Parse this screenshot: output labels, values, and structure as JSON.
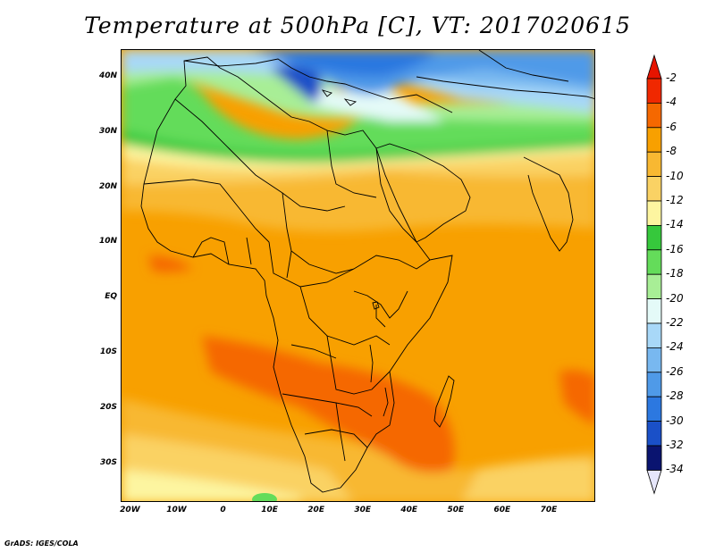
{
  "title": "Temperature at 500hPa [C], VT: 2017020615",
  "credit": "GrADS: IGES/COLA",
  "map": {
    "lon_range": [
      -22,
      80
    ],
    "lat_range": [
      -37,
      45
    ],
    "lat_labels": [
      {
        "lat": 40,
        "label": "40N"
      },
      {
        "lat": 30,
        "label": "30N"
      },
      {
        "lat": 20,
        "label": "20N"
      },
      {
        "lat": 10,
        "label": "10N"
      },
      {
        "lat": 0,
        "label": "EQ"
      },
      {
        "lat": -10,
        "label": "10S"
      },
      {
        "lat": -20,
        "label": "20S"
      },
      {
        "lat": -30,
        "label": "30S"
      }
    ],
    "lon_labels": [
      {
        "lon": -20,
        "label": "20W"
      },
      {
        "lon": -10,
        "label": "10W"
      },
      {
        "lon": 0,
        "label": "0"
      },
      {
        "lon": 10,
        "label": "10E"
      },
      {
        "lon": 20,
        "label": "20E"
      },
      {
        "lon": 30,
        "label": "30E"
      },
      {
        "lon": 40,
        "label": "40E"
      },
      {
        "lon": 50,
        "label": "50E"
      },
      {
        "lon": 60,
        "label": "60E"
      },
      {
        "lon": 70,
        "label": "70E"
      }
    ]
  },
  "colorbar": {
    "levels": [
      {
        "label": "-2",
        "color": "#f02800"
      },
      {
        "label": "-4",
        "color": "#f56800"
      },
      {
        "label": "-6",
        "color": "#f8a000"
      },
      {
        "label": "-8",
        "color": "#f8b832"
      },
      {
        "label": "-10",
        "color": "#fad264"
      },
      {
        "label": "-12",
        "color": "#fdf5a0"
      },
      {
        "label": "-14",
        "color": "#36c83c"
      },
      {
        "label": "-16",
        "color": "#64dc5a"
      },
      {
        "label": "-18",
        "color": "#a8ee96"
      },
      {
        "label": "-20",
        "color": "#e4faf8"
      },
      {
        "label": "-22",
        "color": "#a8d8f8"
      },
      {
        "label": "-24",
        "color": "#78b8f0"
      },
      {
        "label": "-26",
        "color": "#4f9ae8"
      },
      {
        "label": "-28",
        "color": "#2c78e0"
      },
      {
        "label": "-30",
        "color": "#1a50c8"
      },
      {
        "label": "-32",
        "color": "#0a28a0"
      },
      {
        "label": "-34",
        "color": "#e6e6fa"
      }
    ],
    "top_color": "#e61400",
    "bottom_color": "#0a1470"
  }
}
